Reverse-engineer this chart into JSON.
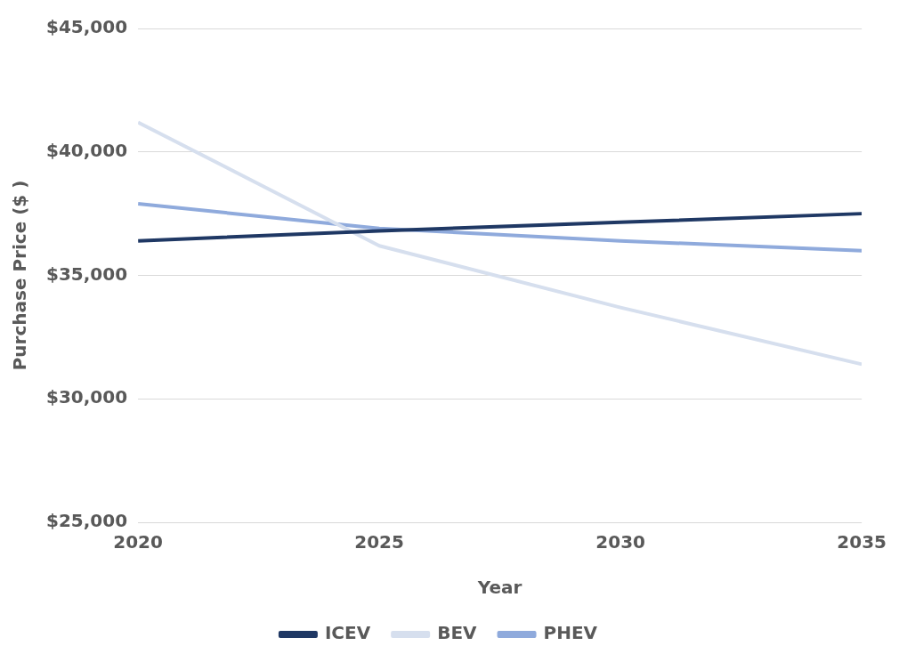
{
  "chart_data": {
    "type": "line",
    "xlabel": "Year",
    "ylabel": "Purchase Price ($ )",
    "x": [
      2020,
      2025,
      2030,
      2035
    ],
    "series": [
      {
        "name": "ICEV",
        "color": "#1f3864",
        "values": [
          36400,
          36800,
          37150,
          37500
        ]
      },
      {
        "name": "BEV",
        "color": "#d6dfee",
        "values": [
          41200,
          36200,
          33700,
          31400
        ]
      },
      {
        "name": "PHEV",
        "color": "#8faadc",
        "values": [
          37900,
          36900,
          36400,
          36000
        ]
      }
    ],
    "xlim": [
      2020,
      2035
    ],
    "xticks": [
      2020,
      2025,
      2030,
      2035
    ],
    "ylim": [
      25000,
      45000
    ],
    "yticks": [
      {
        "value": 25000,
        "label": "$25,000"
      },
      {
        "value": 30000,
        "label": "$30,000"
      },
      {
        "value": 35000,
        "label": "$35,000"
      },
      {
        "value": 40000,
        "label": "$40,000"
      },
      {
        "value": 45000,
        "label": "$45,000"
      }
    ],
    "grid": "y",
    "legend": "bottom",
    "marker": "none",
    "line_style": "solid"
  }
}
